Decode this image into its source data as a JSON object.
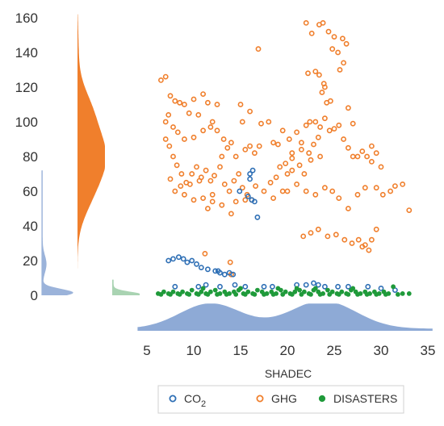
{
  "chart_data": {
    "type": "scatter",
    "xlabel": "SHADEC",
    "ylabel": "",
    "xlim": [
      5,
      35
    ],
    "ylim": [
      0,
      160
    ],
    "xticks": [
      "5",
      "10",
      "15",
      "20",
      "25",
      "30",
      "35"
    ],
    "yticks": [
      "0",
      "20",
      "40",
      "60",
      "80",
      "100",
      "120",
      "140",
      "160"
    ],
    "legend_position": "bottom",
    "grid": false,
    "colors": {
      "co2": "#2e6fb5",
      "ghg": "#f07f2c",
      "disasters": "#1f9a3a",
      "density_x": "#8eaad6",
      "density_ghg": "#f07f2c",
      "density_co2": "#9bb3da",
      "density_dis": "#a9d3b2"
    },
    "series": [
      {
        "key": "co2",
        "name": "CO",
        "name_sub": "2",
        "marker": "open-circle",
        "points": [
          [
            7.3,
            20
          ],
          [
            7.8,
            21
          ],
          [
            8.4,
            22
          ],
          [
            8.9,
            21
          ],
          [
            9.3,
            19
          ],
          [
            9.8,
            20
          ],
          [
            10.3,
            18
          ],
          [
            10.8,
            16
          ],
          [
            11.5,
            15
          ],
          [
            12.3,
            14
          ],
          [
            12.8,
            13
          ],
          [
            13.3,
            12
          ],
          [
            13.8,
            13
          ],
          [
            14.2,
            12
          ],
          [
            12.6,
            14
          ],
          [
            16.0,
            70
          ],
          [
            16.3,
            72
          ],
          [
            16.0,
            67
          ],
          [
            15.8,
            57
          ],
          [
            16.2,
            55
          ],
          [
            16.5,
            54
          ],
          [
            16.8,
            45
          ],
          [
            14.9,
            60
          ],
          [
            8,
            5
          ],
          [
            10.5,
            5
          ],
          [
            11.3,
            6
          ],
          [
            12.8,
            5
          ],
          [
            14.4,
            6
          ],
          [
            15.5,
            5
          ],
          [
            17.5,
            5
          ],
          [
            18.4,
            5
          ],
          [
            21.0,
            6
          ],
          [
            22.0,
            6
          ],
          [
            22.8,
            7
          ],
          [
            23.3,
            6
          ],
          [
            24.0,
            5
          ],
          [
            25.4,
            5
          ],
          [
            26.5,
            5
          ],
          [
            28.6,
            5
          ],
          [
            30.0,
            4
          ],
          [
            31.5,
            3
          ]
        ]
      },
      {
        "key": "ghg",
        "name": "GHG",
        "marker": "open-circle",
        "points": [
          [
            6.5,
            124
          ],
          [
            7.0,
            126
          ],
          [
            7.5,
            115
          ],
          [
            8.0,
            112
          ],
          [
            8.5,
            111
          ],
          [
            9.0,
            110
          ],
          [
            10.0,
            113
          ],
          [
            11.0,
            116
          ],
          [
            11.5,
            111
          ],
          [
            12.5,
            110
          ],
          [
            10.5,
            104
          ],
          [
            9.5,
            105
          ],
          [
            7.0,
            100
          ],
          [
            7.3,
            104
          ],
          [
            7.8,
            97
          ],
          [
            8.3,
            94
          ],
          [
            9.0,
            90
          ],
          [
            10.0,
            91
          ],
          [
            11.0,
            95
          ],
          [
            11.8,
            97
          ],
          [
            12.5,
            95
          ],
          [
            13.2,
            90
          ],
          [
            13.6,
            85
          ],
          [
            14.0,
            88
          ],
          [
            7.0,
            90
          ],
          [
            7.4,
            86
          ],
          [
            7.8,
            80
          ],
          [
            8.2,
            75
          ],
          [
            8.7,
            70
          ],
          [
            9.2,
            65
          ],
          [
            9.8,
            70
          ],
          [
            10.3,
            74
          ],
          [
            10.8,
            68
          ],
          [
            11.3,
            72
          ],
          [
            11.8,
            66
          ],
          [
            12.2,
            69
          ],
          [
            12.8,
            74
          ],
          [
            13.3,
            64
          ],
          [
            13.8,
            60
          ],
          [
            14.3,
            66
          ],
          [
            14.8,
            70
          ],
          [
            15.2,
            62
          ],
          [
            15.7,
            58
          ],
          [
            16.2,
            55
          ],
          [
            16.6,
            63
          ],
          [
            12.0,
            58
          ],
          [
            13.0,
            52
          ],
          [
            14.0,
            47
          ],
          [
            8.0,
            60
          ],
          [
            9.0,
            58
          ],
          [
            10.0,
            55
          ],
          [
            11.0,
            56
          ],
          [
            11.5,
            50
          ],
          [
            12.0,
            54
          ],
          [
            14.5,
            54
          ],
          [
            15.5,
            55
          ],
          [
            13.0,
            80
          ],
          [
            14.5,
            80
          ],
          [
            15.5,
            84
          ],
          [
            16.0,
            86
          ],
          [
            16.5,
            82
          ],
          [
            17.0,
            86
          ],
          [
            15.2,
            100
          ],
          [
            16.0,
            106
          ],
          [
            16.9,
            142
          ],
          [
            15.0,
            110
          ],
          [
            17.2,
            99
          ],
          [
            18.0,
            100
          ],
          [
            18.5,
            88
          ],
          [
            19.0,
            87
          ],
          [
            19.5,
            95
          ],
          [
            20.2,
            90
          ],
          [
            21.0,
            94
          ],
          [
            21.5,
            88
          ],
          [
            20.5,
            79
          ],
          [
            19.8,
            76
          ],
          [
            19.2,
            74
          ],
          [
            18.8,
            68
          ],
          [
            18.2,
            65
          ],
          [
            20.0,
            70
          ],
          [
            20.5,
            72
          ],
          [
            21.3,
            75
          ],
          [
            21.8,
            70
          ],
          [
            22.3,
            82
          ],
          [
            22.8,
            87
          ],
          [
            23.3,
            91
          ],
          [
            23.5,
            80
          ],
          [
            22.5,
            78
          ],
          [
            21.5,
            84
          ],
          [
            20.5,
            82
          ],
          [
            22.0,
            98
          ],
          [
            22.4,
            100
          ],
          [
            23.0,
            100
          ],
          [
            23.5,
            97
          ],
          [
            24.0,
            102
          ],
          [
            24.5,
            95
          ],
          [
            25.0,
            96
          ],
          [
            25.5,
            98
          ],
          [
            26.0,
            90
          ],
          [
            26.5,
            85
          ],
          [
            27.0,
            80
          ],
          [
            27.5,
            80
          ],
          [
            28.0,
            83
          ],
          [
            28.5,
            80
          ],
          [
            29.0,
            77
          ],
          [
            29.5,
            82
          ],
          [
            30.0,
            74
          ],
          [
            29.0,
            86
          ],
          [
            23.7,
            117
          ],
          [
            24.2,
            111
          ],
          [
            24.6,
            112
          ],
          [
            23.9,
            122
          ],
          [
            22.0,
            157
          ],
          [
            22.6,
            151
          ],
          [
            23.4,
            156
          ],
          [
            23.8,
            157
          ],
          [
            24.4,
            152
          ],
          [
            25.0,
            149
          ],
          [
            24.8,
            142
          ],
          [
            25.4,
            140
          ],
          [
            25.9,
            148
          ],
          [
            26.3,
            145
          ],
          [
            26.0,
            134
          ],
          [
            25.6,
            130
          ],
          [
            22.2,
            128
          ],
          [
            23.0,
            129
          ],
          [
            23.4,
            127
          ],
          [
            24.0,
            120
          ],
          [
            26.5,
            108
          ],
          [
            27.0,
            99
          ],
          [
            20.0,
            60
          ],
          [
            21.0,
            64
          ],
          [
            22.0,
            60
          ],
          [
            23.0,
            58
          ],
          [
            24.0,
            62
          ],
          [
            24.8,
            60
          ],
          [
            25.5,
            56
          ],
          [
            26.5,
            50
          ],
          [
            27.5,
            58
          ],
          [
            28.3,
            62
          ],
          [
            29.5,
            62
          ],
          [
            30.2,
            58
          ],
          [
            31.0,
            60
          ],
          [
            31.5,
            63
          ],
          [
            32.3,
            64
          ],
          [
            33.0,
            49
          ],
          [
            21.7,
            34
          ],
          [
            22.5,
            36
          ],
          [
            23.3,
            38
          ],
          [
            24.3,
            34
          ],
          [
            25.2,
            35
          ],
          [
            26.1,
            32
          ],
          [
            26.9,
            30
          ],
          [
            27.6,
            32
          ],
          [
            28.3,
            29
          ],
          [
            29.0,
            32
          ],
          [
            29.5,
            38
          ],
          [
            28.7,
            26
          ],
          [
            28.0,
            28
          ],
          [
            7.5,
            67
          ],
          [
            8.6,
            63
          ],
          [
            9.6,
            64
          ],
          [
            10.6,
            66
          ],
          [
            17.5,
            60
          ],
          [
            18.5,
            56
          ],
          [
            19.5,
            60
          ],
          [
            12.0,
            100
          ],
          [
            13.9,
            19
          ],
          [
            11.2,
            24
          ],
          [
            14.0,
            12
          ]
        ]
      },
      {
        "key": "disasters",
        "name": "DISASTERS",
        "marker": "filled-circle",
        "points": [
          [
            6.2,
            1
          ],
          [
            6.8,
            2
          ],
          [
            7.3,
            1
          ],
          [
            7.8,
            2
          ],
          [
            8.3,
            1
          ],
          [
            8.8,
            2
          ],
          [
            9.3,
            1
          ],
          [
            9.8,
            3
          ],
          [
            10.3,
            1
          ],
          [
            10.8,
            2
          ],
          [
            11.3,
            1
          ],
          [
            11.8,
            2
          ],
          [
            12.3,
            3
          ],
          [
            12.8,
            1
          ],
          [
            13.3,
            2
          ],
          [
            13.8,
            1
          ],
          [
            14.3,
            2
          ],
          [
            14.8,
            3
          ],
          [
            15.3,
            1
          ],
          [
            15.8,
            2
          ],
          [
            16.3,
            1
          ],
          [
            16.8,
            3
          ],
          [
            17.3,
            2
          ],
          [
            17.8,
            1
          ],
          [
            18.3,
            2
          ],
          [
            18.8,
            1
          ],
          [
            19.3,
            3
          ],
          [
            19.8,
            2
          ],
          [
            20.3,
            1
          ],
          [
            20.8,
            2
          ],
          [
            21.3,
            3
          ],
          [
            21.8,
            2
          ],
          [
            22.3,
            1
          ],
          [
            22.8,
            3
          ],
          [
            23.3,
            2
          ],
          [
            23.8,
            1
          ],
          [
            24.3,
            3
          ],
          [
            24.8,
            2
          ],
          [
            25.3,
            1
          ],
          [
            25.8,
            2
          ],
          [
            26.3,
            1
          ],
          [
            26.8,
            3
          ],
          [
            27.3,
            2
          ],
          [
            27.8,
            1
          ],
          [
            28.3,
            2
          ],
          [
            28.8,
            1
          ],
          [
            29.3,
            2
          ],
          [
            29.8,
            1
          ],
          [
            30.3,
            2
          ],
          [
            30.8,
            1
          ],
          [
            31.3,
            5
          ],
          [
            32.3,
            1
          ],
          [
            33.0,
            1
          ],
          [
            6.5,
            0.5
          ],
          [
            7.5,
            0.5
          ],
          [
            8.5,
            0.5
          ],
          [
            9.5,
            0.5
          ],
          [
            10.5,
            0.5
          ],
          [
            11.5,
            0.5
          ],
          [
            12.5,
            0.5
          ],
          [
            13.5,
            0.5
          ],
          [
            14.5,
            0.5
          ],
          [
            15.5,
            0.5
          ],
          [
            16.5,
            0.5
          ],
          [
            17.5,
            0.5
          ],
          [
            18.5,
            0.5
          ],
          [
            19.5,
            0.5
          ],
          [
            20.5,
            0.5
          ],
          [
            21.5,
            0.5
          ],
          [
            22.5,
            0.5
          ],
          [
            23.5,
            0.5
          ],
          [
            24.5,
            0.5
          ],
          [
            25.5,
            0.5
          ],
          [
            26.5,
            0.5
          ],
          [
            27.5,
            0.5
          ],
          [
            28.5,
            0.5
          ],
          [
            29.5,
            0.5
          ],
          [
            30.5,
            0.5
          ],
          [
            31.8,
            0.5
          ],
          [
            11.0,
            4
          ],
          [
            15.0,
            4
          ],
          [
            19.0,
            4
          ],
          [
            21.0,
            4
          ],
          [
            23.0,
            4
          ],
          [
            27.0,
            4
          ]
        ]
      }
    ]
  }
}
